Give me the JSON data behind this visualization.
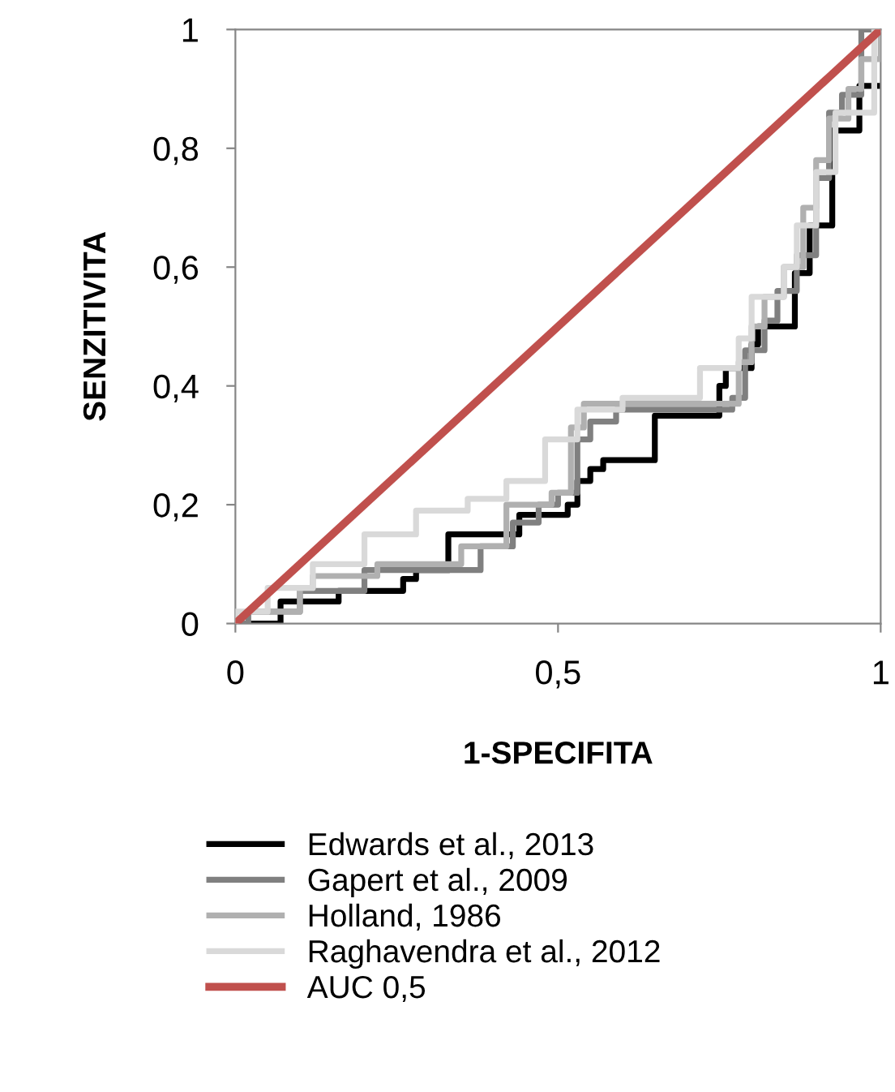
{
  "chart_data": {
    "type": "line",
    "xlabel": "1-SPECIFITA",
    "ylabel": "SENZITIVITA",
    "xlim": [
      0,
      1
    ],
    "ylim": [
      0,
      1
    ],
    "xticks": [
      0,
      {
        "value": 0.5,
        "label": "0,5"
      },
      1
    ],
    "yticks": [
      0,
      {
        "value": 0.2,
        "label": "0,2"
      },
      {
        "value": 0.4,
        "label": "0,4"
      },
      {
        "value": 0.6,
        "label": "0,6"
      },
      {
        "value": 0.8,
        "label": "0,8"
      },
      1
    ],
    "grid": false,
    "legend": "bottom",
    "marker": "none",
    "line_style": "solid",
    "series": [
      {
        "name": "Edwards et al., 2013",
        "color": "#000000",
        "x": [
          0,
          0.07,
          0.07,
          0.16,
          0.16,
          0.26,
          0.26,
          0.28,
          0.28,
          0.33,
          0.33,
          0.44,
          0.44,
          0.515,
          0.515,
          0.53,
          0.53,
          0.55,
          0.55,
          0.57,
          0.57,
          0.65,
          0.65,
          0.75,
          0.75,
          0.76,
          0.76,
          0.8,
          0.8,
          0.81,
          0.81,
          0.867,
          0.867,
          0.89,
          0.89,
          0.925,
          0.925,
          0.967,
          0.967,
          1
        ],
        "values": [
          0,
          0,
          0.037,
          0.037,
          0.055,
          0.055,
          0.075,
          0.075,
          0.09,
          0.09,
          0.15,
          0.15,
          0.183,
          0.183,
          0.2,
          0.2,
          0.24,
          0.24,
          0.26,
          0.26,
          0.275,
          0.275,
          0.35,
          0.35,
          0.4,
          0.4,
          0.43,
          0.43,
          0.47,
          0.47,
          0.5,
          0.5,
          0.59,
          0.59,
          0.67,
          0.67,
          0.83,
          0.83,
          0.905,
          0.905
        ]
      },
      {
        "name": "Gapert et al., 2009",
        "color": "#808080",
        "x": [
          0,
          0.02,
          0.02,
          0.1,
          0.1,
          0.2,
          0.2,
          0.38,
          0.38,
          0.43,
          0.43,
          0.47,
          0.47,
          0.5,
          0.5,
          0.53,
          0.53,
          0.55,
          0.55,
          0.59,
          0.59,
          0.77,
          0.77,
          0.79,
          0.79,
          0.82,
          0.82,
          0.84,
          0.84,
          0.87,
          0.87,
          0.9,
          0.9,
          0.92,
          0.92,
          0.94,
          0.94,
          0.97,
          0.97,
          1
        ],
        "values": [
          0,
          0,
          0.02,
          0.02,
          0.055,
          0.055,
          0.09,
          0.09,
          0.13,
          0.13,
          0.17,
          0.17,
          0.2,
          0.2,
          0.22,
          0.22,
          0.31,
          0.31,
          0.34,
          0.34,
          0.36,
          0.36,
          0.38,
          0.38,
          0.46,
          0.46,
          0.51,
          0.51,
          0.56,
          0.56,
          0.62,
          0.62,
          0.75,
          0.75,
          0.86,
          0.86,
          0.89,
          0.89,
          1,
          1
        ]
      },
      {
        "name": "Holland, 1986",
        "color": "#b0b0b0",
        "x": [
          0,
          0.02,
          0.1,
          0.1,
          0.12,
          0.12,
          0.22,
          0.22,
          0.35,
          0.35,
          0.42,
          0.42,
          0.49,
          0.49,
          0.52,
          0.52,
          0.54,
          0.54,
          0.78,
          0.78,
          0.8,
          0.8,
          0.82,
          0.82,
          0.85,
          0.85,
          0.88,
          0.88,
          0.9,
          0.9,
          0.92,
          0.92,
          0.95,
          0.95,
          0.97,
          0.97,
          1,
          1
        ],
        "values": [
          0,
          0.02,
          0.02,
          0.06,
          0.06,
          0.08,
          0.08,
          0.1,
          0.1,
          0.13,
          0.13,
          0.2,
          0.2,
          0.22,
          0.22,
          0.33,
          0.33,
          0.37,
          0.37,
          0.44,
          0.44,
          0.5,
          0.5,
          0.55,
          0.55,
          0.6,
          0.6,
          0.7,
          0.7,
          0.78,
          0.78,
          0.85,
          0.85,
          0.9,
          0.9,
          0.95,
          0.95,
          1
        ]
      },
      {
        "name": "Raghavendra et al., 2012",
        "color": "#d9d9d9",
        "x": [
          0,
          0,
          0.05,
          0.05,
          0.12,
          0.12,
          0.2,
          0.2,
          0.28,
          0.28,
          0.36,
          0.36,
          0.42,
          0.42,
          0.48,
          0.48,
          0.53,
          0.53,
          0.6,
          0.6,
          0.72,
          0.72,
          0.78,
          0.78,
          0.8,
          0.8,
          0.85,
          0.85,
          0.87,
          0.87,
          0.9,
          0.9,
          0.93,
          0.93,
          0.99,
          0.99,
          1
        ],
        "values": [
          0,
          0.02,
          0.02,
          0.06,
          0.06,
          0.1,
          0.1,
          0.15,
          0.15,
          0.19,
          0.19,
          0.21,
          0.21,
          0.24,
          0.24,
          0.31,
          0.31,
          0.36,
          0.36,
          0.38,
          0.38,
          0.43,
          0.43,
          0.48,
          0.48,
          0.55,
          0.55,
          0.6,
          0.6,
          0.67,
          0.67,
          0.76,
          0.76,
          0.86,
          0.86,
          1,
          1
        ]
      },
      {
        "name": "AUC 0,5",
        "color": "#c0504d",
        "x": [
          0,
          1
        ],
        "values": [
          0,
          1
        ]
      }
    ]
  }
}
